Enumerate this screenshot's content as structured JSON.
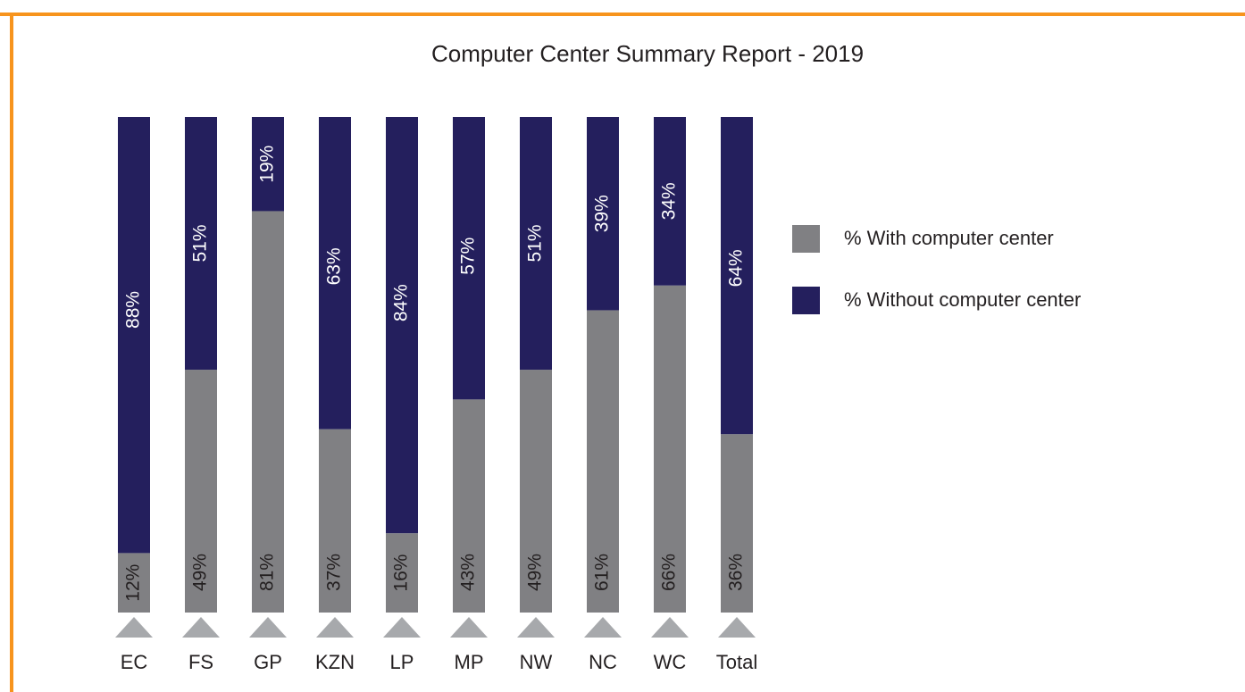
{
  "chart_data": {
    "type": "stacked_bar",
    "title": "Computer Center Summary Report - 2019",
    "categories": [
      "EC",
      "FS",
      "GP",
      "KZN",
      "LP",
      "MP",
      "NW",
      "NC",
      "WC",
      "Total"
    ],
    "series": [
      {
        "name": "% With computer center",
        "color": "#808083",
        "values": [
          12,
          49,
          81,
          37,
          16,
          43,
          49,
          61,
          66,
          36
        ],
        "value_labels": [
          "12%",
          "49%",
          "81%",
          "37%",
          "16%",
          "43%",
          "49%",
          "61%",
          "66%",
          "36%"
        ]
      },
      {
        "name": "% Without computer center",
        "color": "#241f5d",
        "values": [
          88,
          51,
          19,
          63,
          84,
          57,
          51,
          39,
          34,
          64
        ],
        "value_labels": [
          "88%",
          "51%",
          "19%",
          "63%",
          "84%",
          "57%",
          "51%",
          "39%",
          "34%",
          "64%"
        ]
      }
    ]
  }
}
